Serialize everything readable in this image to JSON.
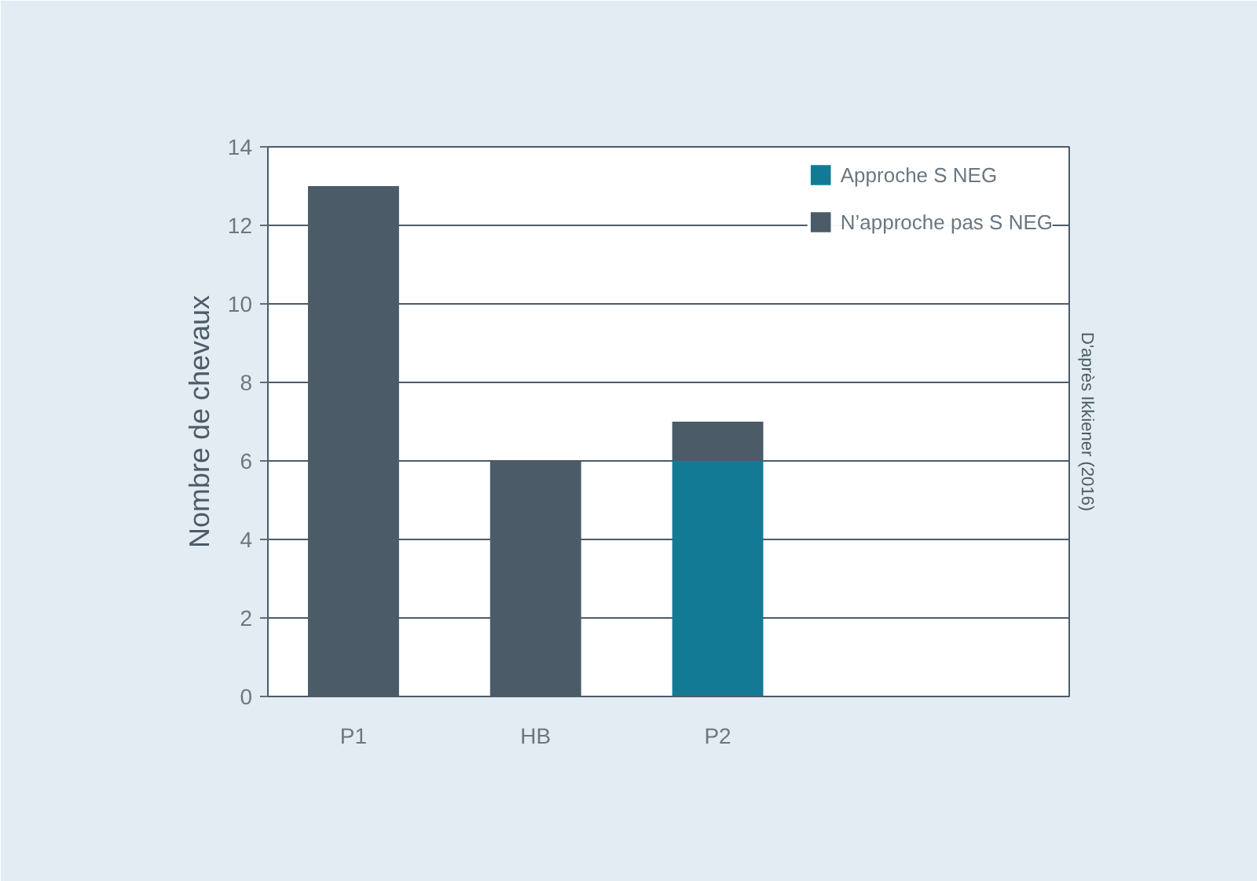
{
  "chart_data": {
    "type": "bar",
    "stacked": true,
    "categories": [
      "P1",
      "HB",
      "P2"
    ],
    "series": [
      {
        "name": "Approche S NEG",
        "color": "#137a96",
        "values": [
          0,
          0,
          6
        ]
      },
      {
        "name": "N’approche pas S NEG",
        "color": "#4c5b68",
        "values": [
          13,
          6,
          1
        ]
      }
    ],
    "ylabel": "Nombre de chevaux",
    "ylim": [
      0,
      14
    ],
    "yticks": [
      0,
      2,
      4,
      6,
      8,
      10,
      12,
      14
    ],
    "grid": "y",
    "legend": "top right",
    "annotations": [
      "D'après Ikkiener (2016)"
    ]
  }
}
